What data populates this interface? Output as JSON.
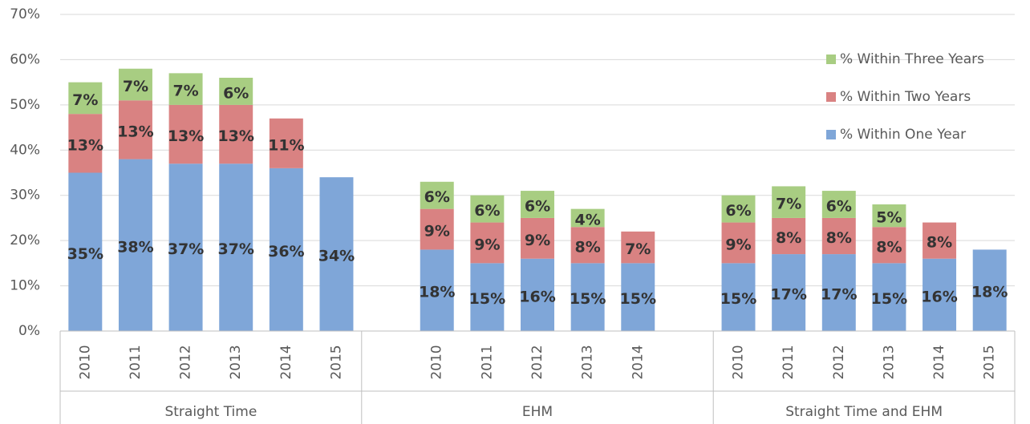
{
  "chart_data": {
    "type": "stacked_bar",
    "groups": [
      {
        "name": "Straight Time",
        "categories": [
          "2010",
          "2011",
          "2012",
          "2013",
          "2014",
          "2015"
        ]
      },
      {
        "name": "EHM",
        "categories": [
          null,
          "2010",
          "2011",
          "2012",
          "2013",
          "2014",
          null
        ]
      },
      {
        "name": "Straight Time and EHM",
        "categories": [
          "2010",
          "2011",
          "2012",
          "2013",
          "2014",
          "2015"
        ]
      }
    ],
    "series": [
      {
        "name": "% Within One Year",
        "color": "#7fa6d8",
        "values": [
          35,
          38,
          37,
          37,
          36,
          34,
          null,
          18,
          15,
          16,
          15,
          15,
          null,
          15,
          17,
          17,
          15,
          16,
          18
        ],
        "value_labels": [
          "35%",
          "38%",
          "37%",
          "37%",
          "36%",
          "34%",
          null,
          "18%",
          "15%",
          "16%",
          "15%",
          "15%",
          null,
          "15%",
          "17%",
          "17%",
          "15%",
          "16%",
          "18%"
        ]
      },
      {
        "name": "% Within Two Years",
        "color": "#d98282",
        "values": [
          13,
          13,
          13,
          13,
          11,
          null,
          null,
          9,
          9,
          9,
          8,
          7,
          null,
          9,
          8,
          8,
          8,
          8,
          null
        ],
        "value_labels": [
          "13%",
          "13%",
          "13%",
          "13%",
          "11%",
          null,
          null,
          "9%",
          "9%",
          "9%",
          "8%",
          "7%",
          null,
          "9%",
          "8%",
          "8%",
          "8%",
          "8%",
          null
        ]
      },
      {
        "name": "% Within Three Years",
        "color": "#a8cd82",
        "values": [
          7,
          7,
          7,
          6,
          null,
          null,
          null,
          6,
          6,
          6,
          4,
          null,
          null,
          6,
          7,
          6,
          5,
          null,
          null
        ],
        "value_labels": [
          "7%",
          "7%",
          "7%",
          "6%",
          null,
          null,
          null,
          "6%",
          "6%",
          "6%",
          "4%",
          null,
          null,
          "6%",
          "7%",
          "6%",
          "5%",
          null,
          null
        ]
      }
    ],
    "ylim": [
      0,
      70
    ],
    "yticks": [
      {
        "value": 0,
        "label": "0%"
      },
      {
        "value": 10,
        "label": "10%"
      },
      {
        "value": 20,
        "label": "20%"
      },
      {
        "value": 30,
        "label": "30%"
      },
      {
        "value": 40,
        "label": "40%"
      },
      {
        "value": 50,
        "label": "50%"
      },
      {
        "value": 60,
        "label": "60%"
      },
      {
        "value": 70,
        "label": "70%"
      }
    ],
    "grid": true,
    "legend": "right"
  }
}
